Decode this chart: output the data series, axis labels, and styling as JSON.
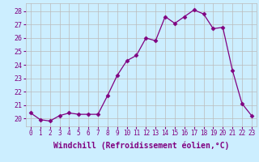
{
  "x": [
    0,
    1,
    2,
    3,
    4,
    5,
    6,
    7,
    8,
    9,
    10,
    11,
    12,
    13,
    14,
    15,
    16,
    17,
    18,
    19,
    20,
    21,
    22,
    23
  ],
  "y": [
    20.4,
    19.9,
    19.8,
    20.2,
    20.4,
    20.3,
    20.3,
    20.3,
    21.7,
    23.2,
    24.3,
    24.7,
    26.0,
    25.8,
    27.6,
    27.1,
    27.6,
    28.1,
    27.8,
    26.7,
    26.8,
    23.6,
    21.1,
    20.2
  ],
  "line_color": "#800080",
  "marker": "D",
  "markersize": 2.5,
  "linewidth": 0.9,
  "bg_color": "#cceeff",
  "grid_color": "#bbbbbb",
  "xlabel": "Windchill (Refroidissement éolien,°C)",
  "ylabel_ticks": [
    20,
    21,
    22,
    23,
    24,
    25,
    26,
    27,
    28
  ],
  "ylim": [
    19.4,
    28.6
  ],
  "xlim": [
    -0.5,
    23.5
  ],
  "tick_color": "#800080",
  "xlabel_fontsize": 7.0,
  "xtick_fontsize": 5.5,
  "ytick_fontsize": 6.0
}
